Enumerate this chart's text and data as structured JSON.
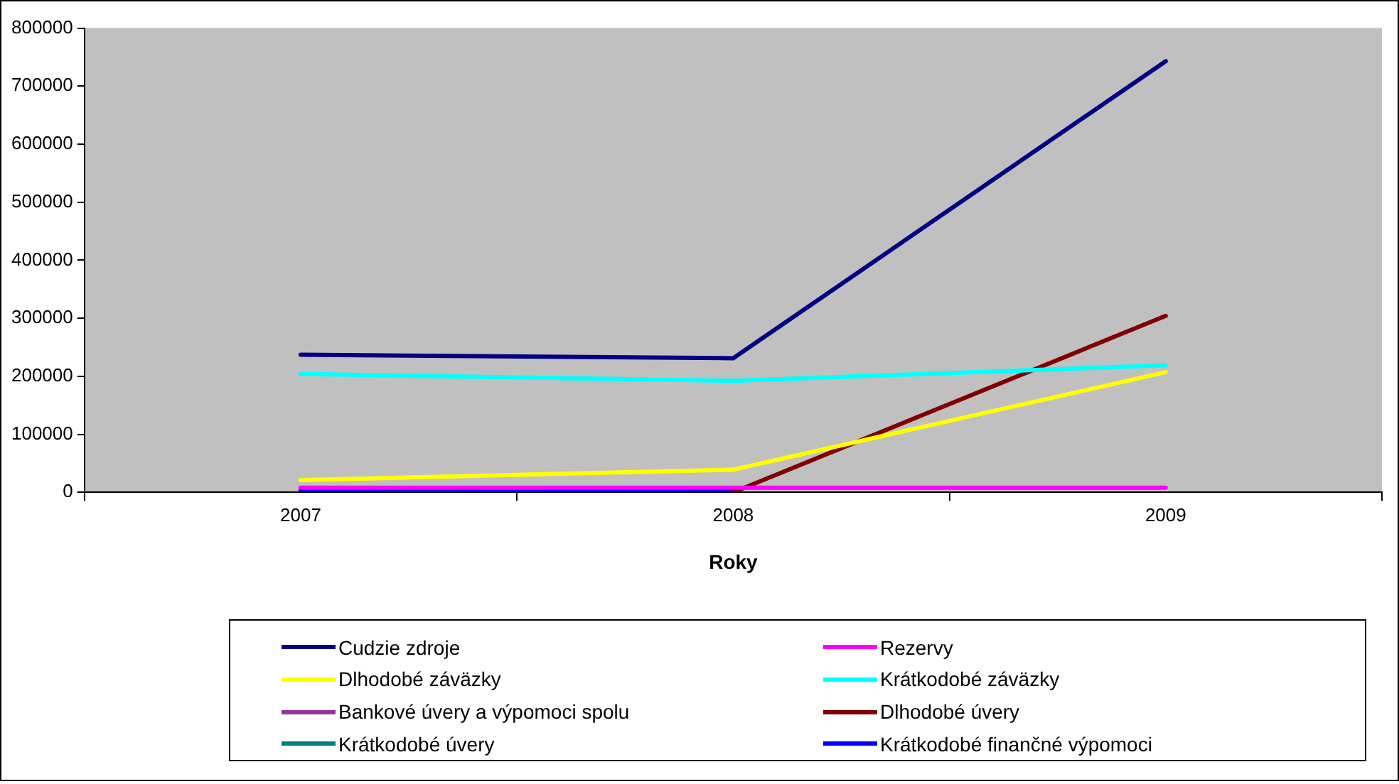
{
  "chart_data": {
    "type": "line",
    "xlabel": "Roky",
    "categories": [
      "2007",
      "2008",
      "2009"
    ],
    "ylim": [
      0,
      800000
    ],
    "yticks": [
      0,
      100000,
      200000,
      300000,
      400000,
      500000,
      600000,
      700000,
      800000
    ],
    "grid": false,
    "legend": "bottom",
    "marker": "none",
    "line_style": "solid",
    "series": [
      {
        "name": "Cudzie zdroje",
        "color": "#000080",
        "values": [
          237000,
          231000,
          743000
        ]
      },
      {
        "name": "Rezervy",
        "color": "#ff00ff",
        "values": [
          8000,
          8000,
          8000
        ]
      },
      {
        "name": "Dlhodobé záväzky",
        "color": "#ffff00",
        "values": [
          21000,
          39000,
          207000
        ]
      },
      {
        "name": "Krátkodobé záväzky",
        "color": "#00ffff",
        "values": [
          204000,
          192000,
          219000
        ]
      },
      {
        "name": "Bankové úvery a výpomoci spolu",
        "color": "#993399",
        "values": [
          null,
          null,
          null
        ]
      },
      {
        "name": "Dlhodobé úvery",
        "color": "#800000",
        "values": [
          null,
          0,
          304000
        ]
      },
      {
        "name": "Krátkodobé úvery",
        "color": "#008080",
        "values": [
          null,
          null,
          null
        ]
      },
      {
        "name": "Krátkodobé finančné výpomoci",
        "color": "#0000ff",
        "values": [
          4000,
          3000,
          null
        ]
      }
    ]
  }
}
